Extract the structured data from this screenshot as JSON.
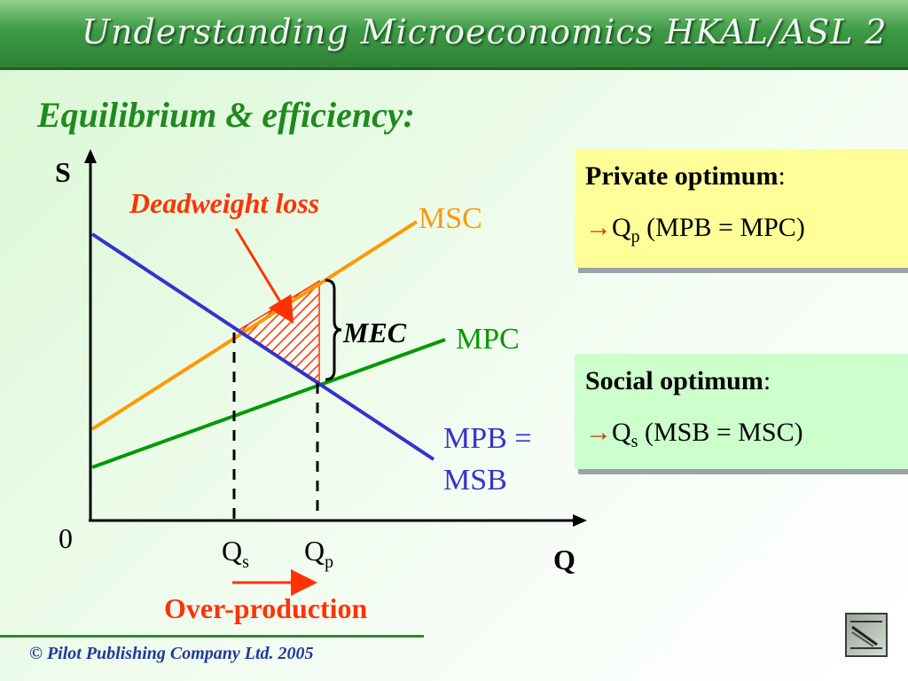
{
  "header": {
    "banner_text": "Understanding Microeconomics HKAL/ASL 2",
    "slide_title": "Equilibrium & efficiency:"
  },
  "diagram": {
    "axis_y_label": "S",
    "axis_x_label": "Q",
    "origin_label": "0",
    "curves": [
      {
        "label": "MSC",
        "color": "#ff9900"
      },
      {
        "label": "MPC",
        "color": "#009900"
      },
      {
        "label_line1": "MPB =",
        "label_line2": "MSB",
        "color": "#3333cc"
      }
    ],
    "deadweight_loss_label": "Deadweight loss",
    "mec_label": "MEC",
    "qs": {
      "main": "Q",
      "sub": "s"
    },
    "qp": {
      "main": "Q",
      "sub": "p"
    },
    "over_production_label": "Over-production",
    "accent_red": "#ff3300"
  },
  "private_box": {
    "heading": "Private optimum",
    "colon": ":",
    "arrow": "→",
    "q_main": "Q",
    "q_sub": "p",
    "condition": " (MPB = MPC)"
  },
  "social_box": {
    "heading": "Social optimum",
    "colon": ":",
    "arrow": "→",
    "q_main": "Q",
    "q_sub": "s",
    "condition": "  (MSB = MSC)"
  },
  "footer": {
    "copyright": "© Pilot Publishing Company Ltd. 2005"
  },
  "icons": {
    "nav": "slide-nav-icon"
  }
}
